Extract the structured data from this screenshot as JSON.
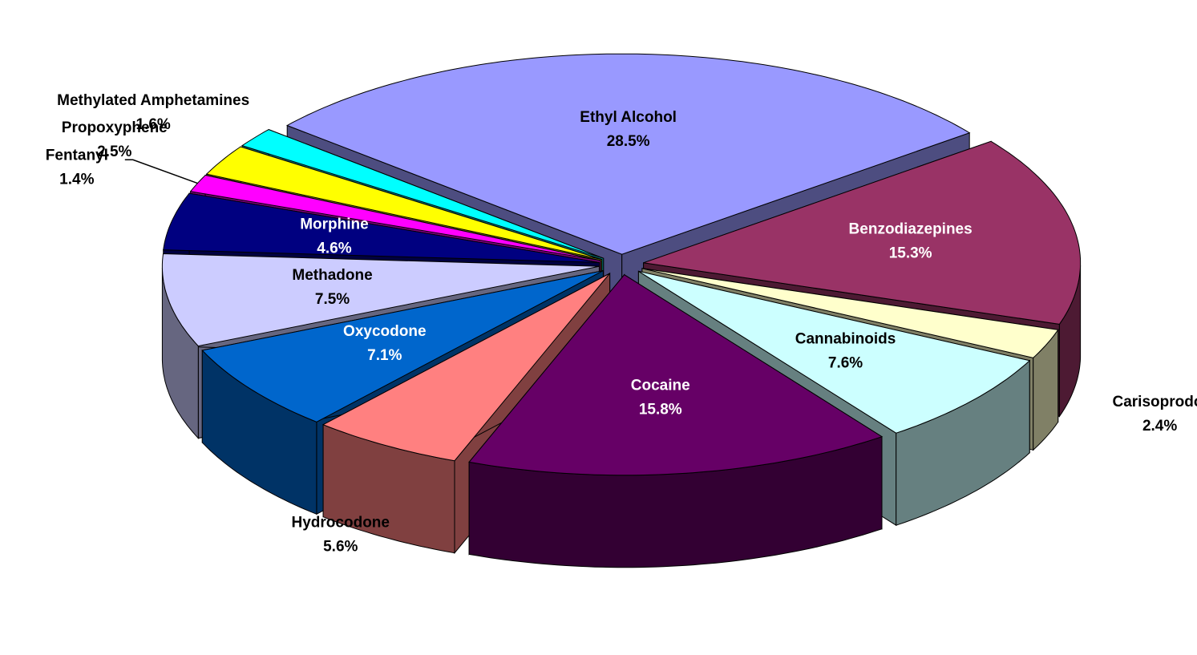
{
  "chart_data": {
    "type": "pie3d",
    "categories": [
      "Ethyl Alcohol",
      "Benzodiazepines",
      "Carisoprodol",
      "Cannabinoids",
      "Cocaine",
      "Hydrocodone",
      "Oxycodone",
      "Methadone",
      "Morphine",
      "Fentanyl",
      "Propoxyphene",
      "Methylated Amphetamines"
    ],
    "values": [
      28.5,
      15.3,
      2.4,
      7.6,
      15.8,
      5.6,
      7.1,
      7.5,
      4.6,
      1.4,
      2.5,
      1.6
    ],
    "value_labels": [
      "28.5%",
      "15.3%",
      "2.4%",
      "7.6%",
      "15.8%",
      "5.6%",
      "7.1%",
      "7.5%",
      "4.6%",
      "1.4%",
      "2.5%",
      "1.6%"
    ],
    "colors": [
      "#9999ff",
      "#993366",
      "#ffffcc",
      "#ccffff",
      "#660066",
      "#ff8080",
      "#0066cc",
      "#ccccff",
      "#000080",
      "#ff00ff",
      "#ffff00",
      "#00ffff"
    ]
  }
}
